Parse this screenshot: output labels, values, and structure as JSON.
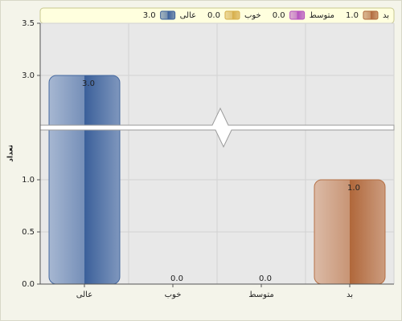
{
  "chart_data": {
    "type": "bar",
    "y_label": "تعداد",
    "categories": [
      "عالی",
      "خوب",
      "متوسط",
      "بد"
    ],
    "values": [
      3.0,
      0.0,
      0.0,
      1.0
    ],
    "value_labels": [
      "3.0",
      "0.0",
      "0.0",
      "1.0"
    ],
    "colors": [
      "#3a5f9a",
      "#d6ac48",
      "#b44fbe",
      "#b0673a"
    ],
    "ylim": [
      0,
      3.5
    ],
    "axis_break": [
      1.5,
      2.5
    ],
    "yticks": [
      {
        "value": 0,
        "label": "0.0"
      },
      {
        "value": 0.5,
        "label": "0.5"
      },
      {
        "value": 1,
        "label": "1.0"
      },
      {
        "value": 3,
        "label": "3.0"
      },
      {
        "value": 3.5,
        "label": "3.5"
      }
    ],
    "grid": true
  }
}
